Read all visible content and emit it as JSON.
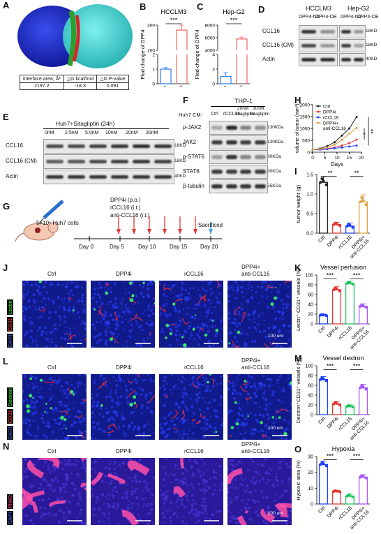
{
  "panels": {
    "A": {
      "label": "A",
      "table": {
        "headers": [
          "interface area, Å²",
          "△G kcal/mol",
          "△G P-value"
        ],
        "values": [
          "2197.2",
          "-18.3",
          "0.091"
        ]
      }
    },
    "B": {
      "label": "B",
      "title": "HCCLM3",
      "ylabel": "Flod change of DPP4",
      "sig": "***",
      "categories": [
        "DPP4-NC",
        "DPP4-OE"
      ],
      "yticks": [
        "0",
        "1",
        "2",
        "200",
        "300"
      ]
    },
    "C": {
      "label": "C",
      "title": "Hep-G2",
      "ylabel": "Flod change of DPP4",
      "sig": "***",
      "categories": [
        "DPP4-NC",
        "DPP4-OE"
      ],
      "yticks": [
        "0",
        "2",
        "4",
        "4000",
        "6000",
        "8000"
      ]
    },
    "D": {
      "label": "D",
      "groups": [
        "HCCLM3",
        "Hep-G2"
      ],
      "lanes": [
        "DPP4-NC",
        "DPP4-OE",
        "DPP4-NC",
        "DPP4-OE"
      ],
      "rows": [
        {
          "name": "CCL16",
          "kda": "18KD"
        },
        {
          "name": "CCL16 (CM)",
          "kda": "18KD"
        },
        {
          "name": "Actin",
          "kda": "40KD"
        }
      ]
    },
    "E": {
      "label": "E",
      "title": "Huh7+Sitagliptin (24h)",
      "lanes": [
        "0nM",
        "2.5nM",
        "5.0nM",
        "10nM",
        "20nM",
        "30nM"
      ],
      "rows": [
        {
          "name": "CCL16",
          "kda": "18KD"
        },
        {
          "name": "CCL16 (CM)",
          "kda": "18KD"
        },
        {
          "name": "Actin",
          "kda": "40KD"
        }
      ]
    },
    "F": {
      "label": "F",
      "title": "THP-1",
      "cm_label": "Huh7 CM:",
      "lanes": [
        "Ctrl",
        "rCCL16",
        "20nM Sitagliptin",
        "30nM Sitagliptin"
      ],
      "rows": [
        {
          "name": "p-JAK2",
          "kda": "130KDa"
        },
        {
          "name": "JAK2",
          "kda": "130KDa"
        },
        {
          "name": "p-STAT6",
          "kda": "90KDa"
        },
        {
          "name": "STAT6",
          "kda": "90KDa"
        },
        {
          "name": "β-tubulin",
          "kda": "55KDa"
        }
      ]
    },
    "G": {
      "label": "G",
      "cells": "5×10⁶ Huh7 cells",
      "treatments": [
        "DPP4i (p.o.)",
        "rCCL16 (i.t.)",
        "anti-CCL16 (i.t.)"
      ],
      "endpoint": "Sacrificed",
      "days": [
        "Day 0",
        "Day 5",
        "Day 10",
        "Day 15",
        "Day 20"
      ]
    },
    "H": {
      "label": "H",
      "ylabel": "volume of tumor (mm³)",
      "xlabel": "Days",
      "legend": [
        "Ctrl",
        "DPP4i",
        "rCCL16",
        "DPP4i+ anti-CCL16"
      ],
      "sig": [
        "**",
        "*"
      ],
      "yticks": [
        "0",
        "500",
        "1000",
        "1500",
        "2000"
      ],
      "xticks": [
        "0",
        "5",
        "10",
        "15",
        "20"
      ]
    },
    "I": {
      "label": "I",
      "ylabel": "tumor weight (g)",
      "sig": [
        "**",
        "**"
      ],
      "yticks": [
        "0.0",
        "0.5",
        "1.0",
        "1.5"
      ]
    },
    "J": {
      "label": "J",
      "stain": [
        "DAPI",
        "CD31",
        "Lectin"
      ],
      "columns": [
        "Ctrl",
        "DPP4i",
        "rCCL16",
        "DPP4i+ anti-CCL16"
      ],
      "scale": "100 um"
    },
    "K": {
      "label": "K",
      "title": "Vessel perfusion",
      "ylabel": "Lectin⁺ CD31⁺ vessels (%)",
      "sig": [
        "***",
        "***"
      ],
      "yticks": [
        "0",
        "20",
        "40",
        "60",
        "80",
        "100"
      ]
    },
    "L": {
      "label": "L",
      "stain": [
        "DAPI",
        "CD31",
        "Dextron"
      ],
      "columns": [
        "Ctrl",
        "DPP4i",
        "rCCL16",
        "DPP4i+ anti-CCL16"
      ],
      "scale": "100 um"
    },
    "M": {
      "label": "M",
      "title": "Vessel dextron",
      "ylabel": "Dextron⁺CD31⁺ vessels (%)",
      "sig": [
        "***",
        "***"
      ],
      "yticks": [
        "0",
        "20",
        "40",
        "60",
        "80",
        "100"
      ]
    },
    "N": {
      "label": "N",
      "stain": [
        "DAPI",
        "PIMO"
      ],
      "columns": [
        "Ctrl",
        "DPP4i",
        "rCCL16",
        "DPP4i+ anti-CCL16"
      ],
      "scale": "200 um"
    },
    "O": {
      "label": "O",
      "title": "Hypoxia",
      "ylabel": "Hypoxic area (%)",
      "sig": [
        "***",
        "***"
      ],
      "yticks": [
        "0",
        "10",
        "20",
        "30"
      ]
    }
  },
  "group_categories": [
    "Ctrl",
    "DPP4i",
    "rCCL16",
    "DPP4i+ anti-CCL16"
  ],
  "group_colors": [
    "#222222",
    "#e53935",
    "#1e40ff",
    "#e0a040"
  ],
  "chart_data": [
    {
      "panel": "B",
      "type": "bar",
      "categories": [
        "DPP4-NC",
        "DPP4-OE"
      ],
      "values": [
        1,
        280
      ],
      "errors": [
        0.1,
        50
      ],
      "colors": [
        "#3b82f6",
        "#f87171"
      ],
      "title": "HCCLM3",
      "ylabel": "Flod change of DPP4"
    },
    {
      "panel": "C",
      "type": "bar",
      "categories": [
        "DPP4-NC",
        "DPP4-OE"
      ],
      "values": [
        1,
        5800
      ],
      "errors": [
        0.5,
        300
      ],
      "colors": [
        "#3b82f6",
        "#f87171"
      ],
      "title": "Hep-G2",
      "ylabel": "Flod change of DPP4"
    },
    {
      "panel": "H",
      "type": "line",
      "x": [
        0,
        3,
        6,
        9,
        12,
        15,
        18
      ],
      "xlabel": "Days",
      "ylabel": "volume of tumor (mm³)",
      "ylim": [
        0,
        2000
      ],
      "series": [
        {
          "name": "Ctrl",
          "values": [
            100,
            150,
            260,
            420,
            700,
            1000,
            1480
          ]
        },
        {
          "name": "DPP4i",
          "values": [
            100,
            110,
            150,
            200,
            280,
            380,
            530
          ]
        },
        {
          "name": "rCCL16",
          "values": [
            100,
            105,
            130,
            160,
            200,
            240,
            280
          ]
        },
        {
          "name": "DPP4i+ anti-CCL16",
          "values": [
            100,
            130,
            200,
            320,
            520,
            780,
            1020
          ]
        }
      ]
    },
    {
      "panel": "I",
      "type": "bar",
      "categories": [
        "Ctrl",
        "DPP4i",
        "rCCL16",
        "DPP4i+ anti-CCL16"
      ],
      "values": [
        1.3,
        0.22,
        0.18,
        0.8
      ],
      "errors": [
        0.15,
        0.06,
        0.08,
        0.18
      ],
      "ylim": [
        0,
        1.5
      ],
      "ylabel": "tumor weight (g)"
    },
    {
      "panel": "K",
      "type": "bar",
      "categories": [
        "Ctrl",
        "DPP4i",
        "rCCL16",
        "DPP4i+ anti-CCL16"
      ],
      "values": [
        18,
        70,
        83,
        36
      ],
      "errors": [
        2,
        6,
        4,
        5
      ],
      "ylim": [
        0,
        100
      ],
      "colors": [
        "#1e40ff",
        "#e53935",
        "#22c55e",
        "#a855f7"
      ],
      "title": "Vessel perfusion"
    },
    {
      "panel": "M",
      "type": "bar",
      "categories": [
        "Ctrl",
        "DPP4i",
        "rCCL16",
        "DPP4i+ anti-CCL16"
      ],
      "values": [
        72,
        22,
        17,
        55
      ],
      "errors": [
        6,
        5,
        3,
        7
      ],
      "ylim": [
        0,
        100
      ],
      "colors": [
        "#1e40ff",
        "#e53935",
        "#22c55e",
        "#a855f7"
      ],
      "title": "Vessel dextron"
    },
    {
      "panel": "O",
      "type": "bar",
      "categories": [
        "Ctrl",
        "DPP4i",
        "rCCL16",
        "DPP4i+ anti-CCL16"
      ],
      "values": [
        25,
        8,
        5,
        17
      ],
      "errors": [
        2,
        0.6,
        1.3,
        1.5
      ],
      "ylim": [
        0,
        30
      ],
      "colors": [
        "#1e40ff",
        "#e53935",
        "#22c55e",
        "#a855f7"
      ],
      "title": "Hypoxia"
    }
  ]
}
